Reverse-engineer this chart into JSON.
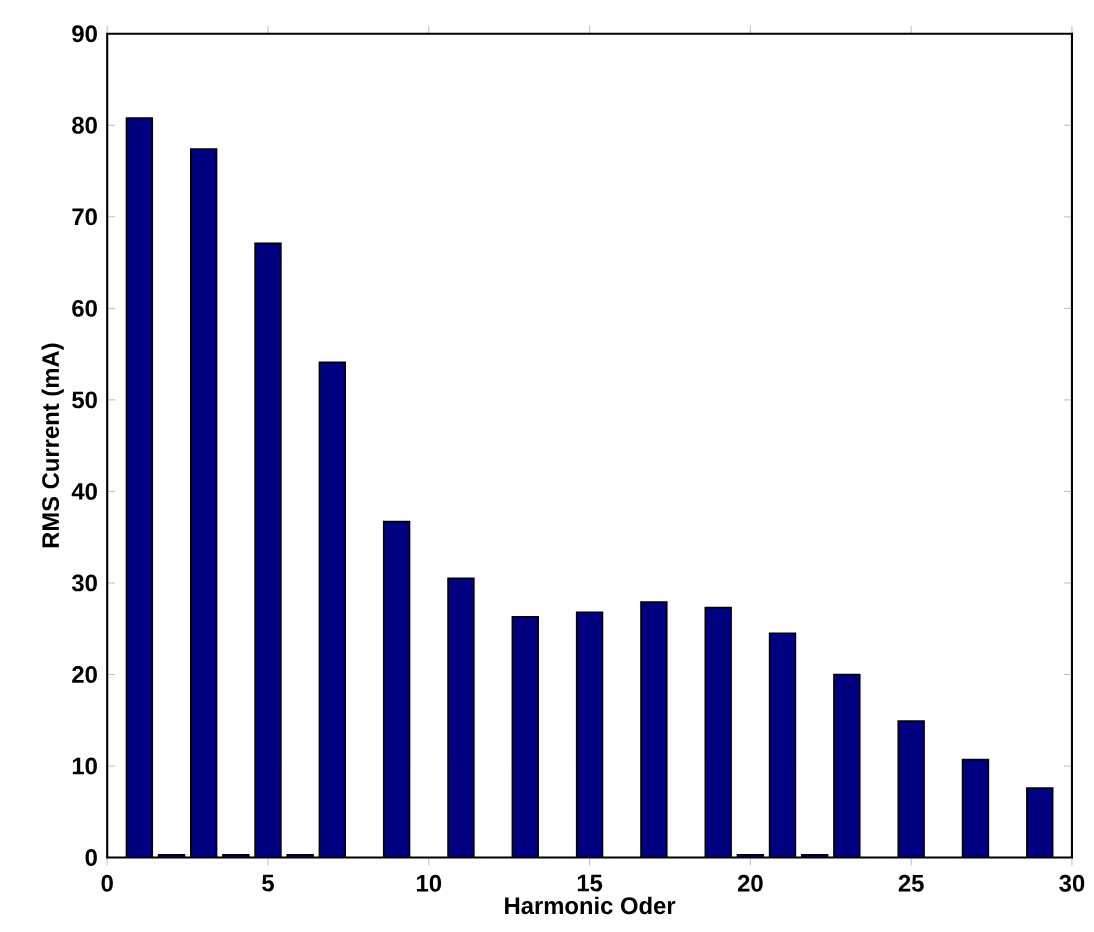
{
  "chart_data": {
    "type": "bar",
    "xlabel": "Harmonic Oder",
    "ylabel": "RMS Current (mA)",
    "x": [
      1,
      2,
      3,
      4,
      5,
      6,
      7,
      9,
      11,
      13,
      15,
      17,
      19,
      20,
      21,
      22,
      23,
      25,
      27,
      29
    ],
    "values": [
      80.8,
      0.3,
      77.4,
      0.3,
      67.1,
      0.3,
      54.1,
      36.7,
      30.5,
      26.3,
      26.8,
      27.9,
      27.3,
      0.3,
      24.5,
      0.3,
      20,
      14.9,
      10.7,
      7.6
    ],
    "color": "#000080",
    "xlim": [
      0,
      30
    ],
    "xticks": [
      0,
      5,
      10,
      15,
      20,
      25,
      30
    ],
    "ylim": [
      0,
      90
    ],
    "yticks": [
      0,
      10,
      20,
      30,
      40,
      50,
      60,
      70,
      80,
      90
    ],
    "grid": false
  }
}
